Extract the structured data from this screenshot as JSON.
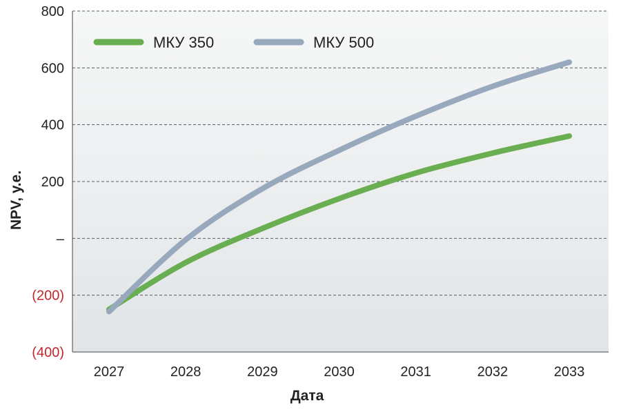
{
  "chart_data": {
    "type": "line",
    "title": "",
    "xlabel": "Дата",
    "ylabel": "NPV, у.е.",
    "categories": [
      "2027",
      "2028",
      "2029",
      "2030",
      "2031",
      "2032",
      "2033"
    ],
    "ylim": [
      -400,
      800
    ],
    "yticks": [
      {
        "value": 800,
        "label": "800"
      },
      {
        "value": 600,
        "label": "600"
      },
      {
        "value": 400,
        "label": "400"
      },
      {
        "value": 200,
        "label": "200"
      },
      {
        "value": 0,
        "label": "–"
      },
      {
        "value": -200,
        "label": "(200)"
      },
      {
        "value": -400,
        "label": "(400)"
      }
    ],
    "grid": true,
    "legend_position": "top-left",
    "series": [
      {
        "name": "МКУ 350",
        "color": "#6aae52",
        "values": [
          -250,
          -85,
          35,
          140,
          230,
          300,
          360
        ]
      },
      {
        "name": "МКУ 500",
        "color": "#98a9be",
        "values": [
          -258,
          -5,
          175,
          310,
          430,
          535,
          620
        ]
      }
    ],
    "negative_label_color": "#c0272d"
  }
}
